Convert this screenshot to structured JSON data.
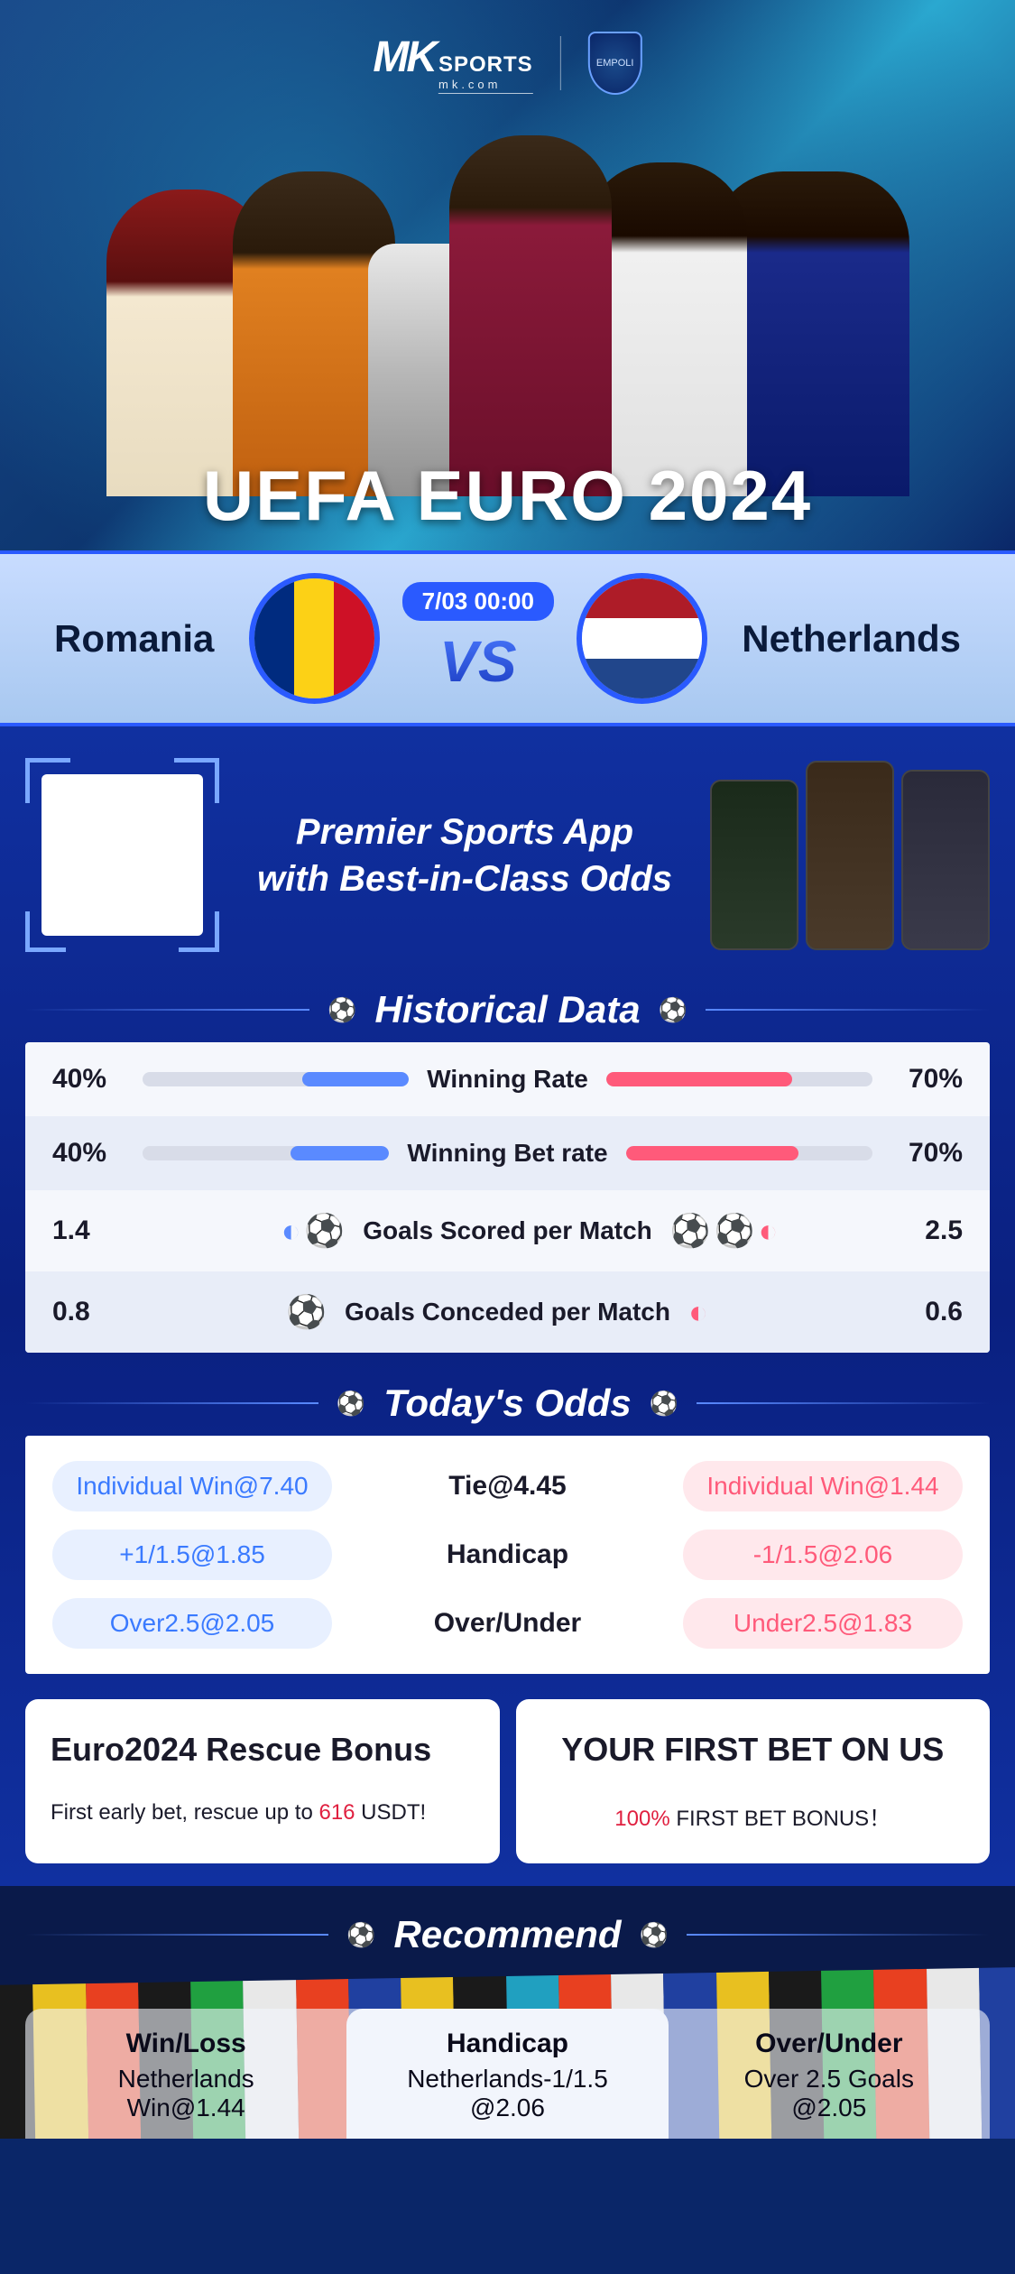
{
  "brand": {
    "mk": "MK",
    "sports": "SPORTS",
    "site": "mk.com",
    "shield": "EMPOLI"
  },
  "hero_title": "UEFA EURO 2024",
  "match": {
    "team_left": "Romania",
    "team_right": "Netherlands",
    "time": "7/03 00:00",
    "vs": "VS"
  },
  "premier": {
    "line1": "Premier Sports App",
    "line2": "with Best-in-Class Odds"
  },
  "sections": {
    "historical": "Historical Data",
    "odds": "Today's Odds",
    "recommend": "Recommend"
  },
  "historical": {
    "rows": [
      {
        "left_val": "40%",
        "right_val": "70%",
        "label": "Winning Rate",
        "type": "bar",
        "left_pct": 40,
        "right_pct": 70
      },
      {
        "left_val": "40%",
        "right_val": "70%",
        "label": "Winning Bet rate",
        "type": "bar",
        "left_pct": 40,
        "right_pct": 70
      },
      {
        "left_val": "1.4",
        "right_val": "2.5",
        "label": "Goals Scored per Match",
        "type": "balls",
        "left_balls": 1.4,
        "right_balls": 2.5
      },
      {
        "left_val": "0.8",
        "right_val": "0.6",
        "label": "Goals Conceded per Match",
        "type": "balls",
        "left_balls": 0.8,
        "right_balls": 0.6
      }
    ],
    "colors": {
      "left": "#5a8aff",
      "right": "#ff5a7a",
      "track": "#d8dce8"
    }
  },
  "odds": {
    "rows": [
      {
        "left": "Individual Win@7.40",
        "mid": "Tie@4.45",
        "right": "Individual Win@1.44"
      },
      {
        "left": "+1/1.5@1.85",
        "mid": "Handicap",
        "right": "-1/1.5@2.06"
      },
      {
        "left": "Over2.5@2.05",
        "mid": "Over/Under",
        "right": "Under2.5@1.83"
      }
    ]
  },
  "bonus": {
    "left": {
      "title": "Euro2024 Rescue Bonus",
      "sub_pre": "First early bet, rescue up to ",
      "sub_amt": "616",
      "sub_post": " USDT!"
    },
    "right": {
      "title": "YOUR FIRST BET ON US",
      "sub_pct": "100%",
      "sub_post": " FIRST BET BONUS！"
    }
  },
  "recommend": {
    "cols": [
      {
        "head": "Win/Loss",
        "l1": "Netherlands",
        "l2": "Win@1.44"
      },
      {
        "head": "Handicap",
        "l1": "Netherlands-1/1.5",
        "l2": "@2.06"
      },
      {
        "head": "Over/Under",
        "l1": "Over 2.5 Goals",
        "l2": "@2.05"
      }
    ]
  },
  "footer_stripe_colors": [
    "#1a1a1a",
    "#e8c020",
    "#e84020",
    "#1a1a1a",
    "#20a040",
    "#e8e8e8",
    "#e84020",
    "#2040a0",
    "#e8c020",
    "#1a1a1a",
    "#20a0c0",
    "#e84020",
    "#e8e8e8",
    "#2040a0",
    "#e8c020",
    "#1a1a1a",
    "#20a040",
    "#e84020",
    "#e8e8e8",
    "#2040a0"
  ]
}
